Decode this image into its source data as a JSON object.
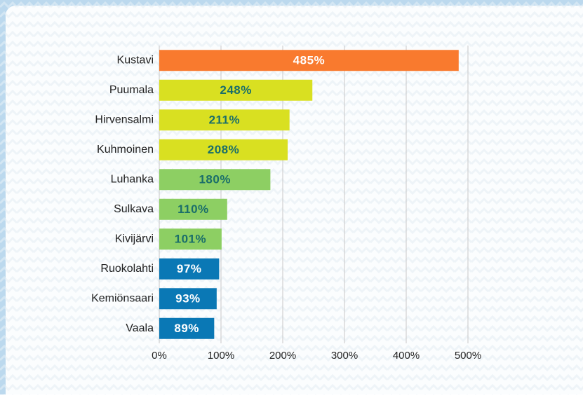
{
  "chart_data": {
    "type": "hbar",
    "categories": [
      "Kustavi",
      "Puumala",
      "Hirvensalmi",
      "Kuhmoinen",
      "Luhanka",
      "Sulkava",
      "Kivijärvi",
      "Ruokolahti",
      "Kemiönsaari",
      "Vaala"
    ],
    "values": [
      485,
      248,
      211,
      208,
      180,
      110,
      101,
      97,
      93,
      89
    ],
    "value_labels": [
      "485%",
      "248%",
      "211%",
      "208%",
      "180%",
      "110%",
      "101%",
      "97%",
      "93%",
      "89%"
    ],
    "colors": [
      "#f97a2e",
      "#d9e021",
      "#d9e021",
      "#d9e021",
      "#8dcf63",
      "#8dcf63",
      "#8dcf63",
      "#0a78b5",
      "#0a78b5",
      "#0a78b5"
    ],
    "label_colors": [
      "#ffffff",
      "#1a6e6a",
      "#1a6e6a",
      "#1a6e6a",
      "#1a6e6a",
      "#1a6e6a",
      "#1a6e6a",
      "#ffffff",
      "#ffffff",
      "#ffffff"
    ],
    "xlim": [
      0,
      500
    ],
    "xticks": [
      {
        "value": 0,
        "label": "0%"
      },
      {
        "value": 100,
        "label": "100%"
      },
      {
        "value": 200,
        "label": "200%"
      },
      {
        "value": 300,
        "label": "300%"
      },
      {
        "value": 400,
        "label": "400%"
      },
      {
        "value": 500,
        "label": "500%"
      }
    ],
    "grid": true
  }
}
